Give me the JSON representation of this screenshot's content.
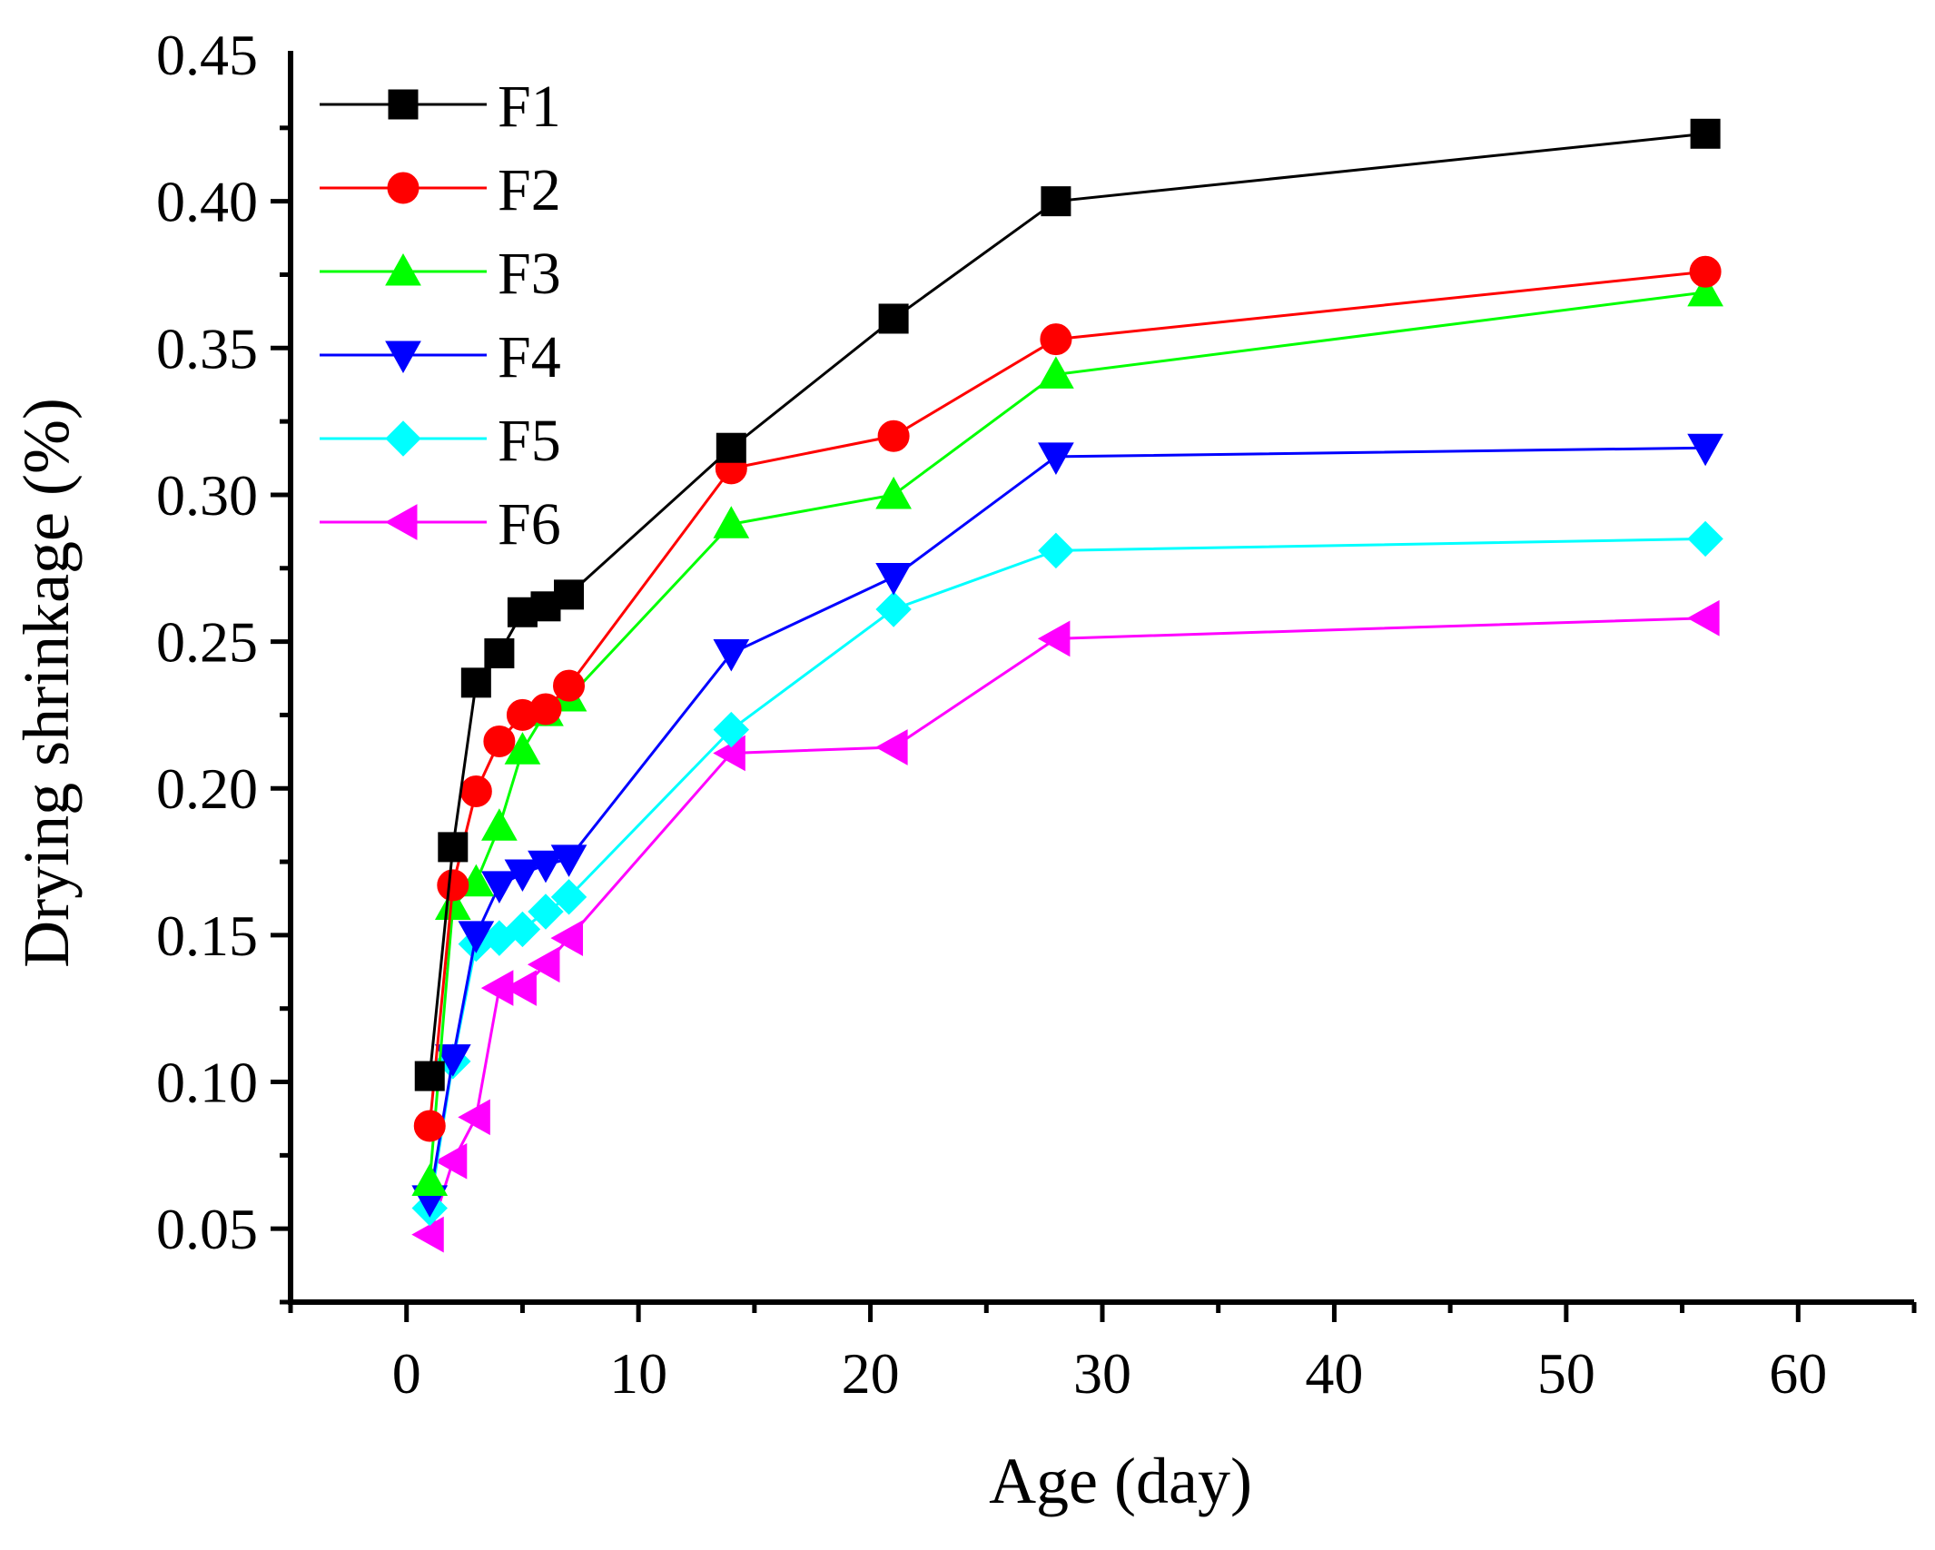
{
  "chart_data": {
    "type": "line",
    "title": "",
    "xlabel": "Age (day)",
    "ylabel": "Drying shrinkage (%)",
    "xlim": [
      -5,
      65
    ],
    "ylim": [
      0.025,
      0.45
    ],
    "x_ticks": [
      0,
      10,
      20,
      30,
      40,
      50,
      60
    ],
    "x_tick_labels": [
      "0",
      "10",
      "20",
      "30",
      "40",
      "50",
      "60"
    ],
    "y_ticks": [
      0.05,
      0.1,
      0.15,
      0.2,
      0.25,
      0.3,
      0.35,
      0.4,
      0.45
    ],
    "y_tick_labels": [
      "0.05",
      "0.10",
      "0.15",
      "0.20",
      "0.25",
      "0.30",
      "0.35",
      "0.40",
      "0.45"
    ],
    "grid": false,
    "legend_position": "top-left",
    "series": [
      {
        "name": "F1",
        "color": "#000000",
        "marker": "square",
        "x": [
          1,
          2,
          3,
          4,
          5,
          6,
          7,
          14,
          21,
          28,
          56
        ],
        "y": [
          0.102,
          0.18,
          0.236,
          0.246,
          0.26,
          0.262,
          0.266,
          0.316,
          0.36,
          0.4,
          0.423
        ]
      },
      {
        "name": "F2",
        "color": "#ff0000",
        "marker": "circle",
        "x": [
          1,
          2,
          3,
          4,
          5,
          6,
          7,
          14,
          21,
          28,
          56
        ],
        "y": [
          0.085,
          0.167,
          0.199,
          0.216,
          0.225,
          0.227,
          0.235,
          0.309,
          0.32,
          0.353,
          0.376
        ]
      },
      {
        "name": "F3",
        "color": "#00ff00",
        "marker": "triangle-up",
        "x": [
          1,
          2,
          3,
          4,
          5,
          6,
          7,
          14,
          21,
          28,
          56
        ],
        "y": [
          0.066,
          0.16,
          0.168,
          0.187,
          0.213,
          0.226,
          0.231,
          0.29,
          0.3,
          0.341,
          0.369
        ]
      },
      {
        "name": "F4",
        "color": "#0000ff",
        "marker": "triangle-down",
        "x": [
          1,
          2,
          3,
          4,
          5,
          6,
          7,
          14,
          21,
          28,
          56
        ],
        "y": [
          0.06,
          0.108,
          0.15,
          0.167,
          0.171,
          0.174,
          0.176,
          0.246,
          0.272,
          0.313,
          0.316
        ]
      },
      {
        "name": "F5",
        "color": "#00ffff",
        "marker": "diamond",
        "x": [
          1,
          2,
          3,
          4,
          5,
          6,
          7,
          14,
          21,
          28,
          56
        ],
        "y": [
          0.057,
          0.107,
          0.147,
          0.149,
          0.152,
          0.158,
          0.163,
          0.22,
          0.261,
          0.281,
          0.285
        ]
      },
      {
        "name": "F6",
        "color": "#ff00ff",
        "marker": "triangle-left",
        "x": [
          1,
          2,
          3,
          4,
          5,
          6,
          7,
          14,
          21,
          28,
          56
        ],
        "y": [
          0.048,
          0.073,
          0.088,
          0.132,
          0.132,
          0.14,
          0.149,
          0.212,
          0.214,
          0.251,
          0.258
        ]
      }
    ]
  }
}
